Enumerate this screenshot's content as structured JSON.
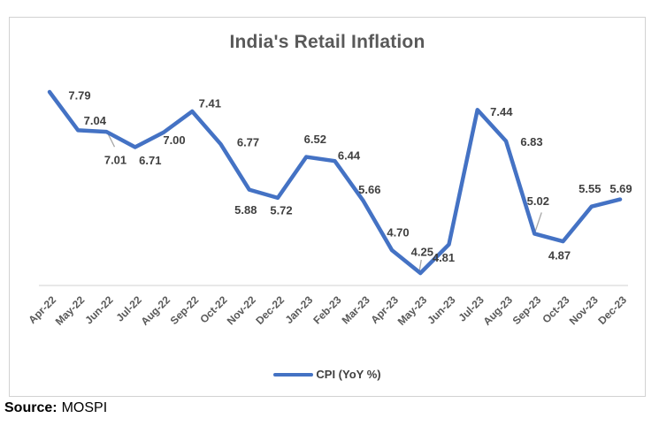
{
  "chart_data": {
    "type": "line",
    "title": "India's Retail Inflation",
    "categories": [
      "Apr-22",
      "May-22",
      "Jun-22",
      "Jul-22",
      "Aug-22",
      "Sep-22",
      "Oct-22",
      "Nov-22",
      "Dec-22",
      "Jan-23",
      "Feb-23",
      "Mar-23",
      "Apr-23",
      "May-23",
      "Jun-23",
      "Jul-23",
      "Aug-23",
      "Sep-23",
      "Oct-23",
      "Nov-23",
      "Dec-23"
    ],
    "series": [
      {
        "name": "CPI (YoY %)",
        "values": [
          7.79,
          7.04,
          7.01,
          6.71,
          7.0,
          7.41,
          6.77,
          5.88,
          5.72,
          6.52,
          6.44,
          5.66,
          4.7,
          4.25,
          4.81,
          7.44,
          6.83,
          5.02,
          4.87,
          5.55,
          5.69
        ]
      }
    ],
    "xlabel": "",
    "ylabel": "",
    "ylim": [
      4.25,
      7.79
    ],
    "grid": false,
    "legend_position": "bottom",
    "data_labels_shown": true,
    "value_decimals": 2,
    "colors": {
      "line": "#4472C4",
      "title_text": "#595959",
      "data_label_text": "#404040",
      "axis_label_text": "#595959",
      "axis_line": "#D9D9D9",
      "leader_line": "#A6A6A6"
    }
  },
  "source": {
    "label": "Source:",
    "value": "MOSPI"
  }
}
